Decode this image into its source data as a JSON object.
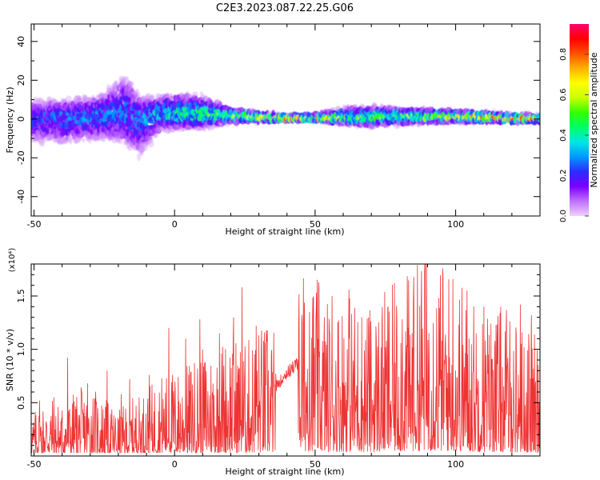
{
  "figure": {
    "title": "C2E3.2023.087.22.25.G06"
  },
  "chart_data": [
    {
      "type": "heatmap",
      "title": "C2E3.2023.087.22.25.G06",
      "xlabel": "Height of straight line (km)",
      "ylabel": "Frequency (Hz)",
      "xlim": [
        -51,
        130
      ],
      "ylim": [
        -50,
        49
      ],
      "xticks": [
        -50,
        0,
        50,
        100
      ],
      "yticks": [
        -40,
        -20,
        0,
        20,
        40
      ],
      "colorbar": {
        "label": "Normalized spectral amplitude",
        "range": [
          0,
          0.95
        ],
        "ticks": [
          0.0,
          0.2,
          0.4,
          0.6,
          0.8
        ],
        "tick_labels": [
          "0.0",
          "0.2",
          "0.4",
          "0.6",
          "0.8"
        ],
        "colormap": [
          "#f0d0ff",
          "#c070ff",
          "#7a00ff",
          "#2a2bff",
          "#0099ff",
          "#00e6e6",
          "#00ff66",
          "#33ff00",
          "#c8ff00",
          "#ffff00",
          "#ffb000",
          "#ff5000",
          "#ff0000",
          "#ff0070"
        ]
      },
      "band_envelope": {
        "height_km": [
          -51,
          -40,
          -30,
          -25,
          -18,
          -12,
          -5,
          0,
          10,
          20,
          30,
          40,
          50,
          60,
          70,
          80,
          90,
          100,
          110,
          120,
          130
        ],
        "center_hz": [
          0,
          1,
          1,
          2,
          3,
          1,
          3,
          2,
          2,
          2,
          1,
          0,
          0,
          0,
          1,
          2,
          1,
          1,
          1,
          0,
          0
        ],
        "lower_hz": [
          -15,
          -16,
          -14,
          -14,
          -16,
          -24,
          -8,
          -7,
          -6,
          -3,
          -2,
          -1,
          -1,
          -3,
          -5,
          -4,
          -3,
          -2,
          -2,
          -2,
          -2
        ],
        "upper_hz": [
          12,
          12,
          14,
          16,
          28,
          14,
          14,
          16,
          14,
          6,
          4,
          3,
          3,
          7,
          8,
          6,
          6,
          5,
          4,
          3,
          3
        ],
        "peak_amplitude": [
          0.25,
          0.3,
          0.3,
          0.3,
          0.3,
          0.3,
          0.4,
          0.45,
          0.5,
          0.6,
          0.8,
          0.9,
          0.85,
          0.6,
          0.55,
          0.55,
          0.6,
          0.75,
          0.9,
          0.95,
          0.85
        ]
      }
    },
    {
      "type": "line",
      "xlabel": "Height of straight line (km)",
      "ylabel": "SNR (10 * v/v)",
      "y_multiplier": "(x10⁴)",
      "xlim": [
        -51,
        130
      ],
      "ylim": [
        0,
        18000
      ],
      "xticks": [
        -50,
        0,
        50,
        100
      ],
      "yticks": [
        5000,
        10000,
        15000
      ],
      "ytick_labels": [
        "0.5",
        "1.0",
        "1.5"
      ],
      "color": "#ee3333",
      "series": [
        {
          "x": [
            -50,
            -45,
            -40,
            -35,
            -30,
            -25,
            -20,
            -15,
            -10,
            -5,
            0,
            5,
            10,
            15,
            20,
            25,
            30,
            35,
            40,
            45,
            50,
            55,
            60,
            65,
            70,
            75,
            80,
            85,
            90,
            95,
            100,
            105,
            110,
            115,
            120,
            125,
            130
          ],
          "y": [
            2200,
            3000,
            2500,
            3200,
            3500,
            2800,
            2200,
            2800,
            3200,
            4000,
            4200,
            4500,
            5200,
            5500,
            6200,
            5500,
            6500,
            6200,
            7800,
            9000,
            8800,
            7500,
            8000,
            7800,
            7200,
            8000,
            8500,
            9000,
            10500,
            9500,
            9000,
            8000,
            7200,
            7500,
            7000,
            6200,
            5800
          ],
          "peak_x": [
            -48,
            -43,
            -38,
            -31,
            -24,
            -19,
            -16,
            -9,
            -2,
            4,
            9,
            16,
            21,
            24,
            29,
            33,
            38,
            42,
            48,
            56,
            62,
            69,
            76,
            81,
            85,
            89,
            94,
            99,
            104,
            110,
            114,
            118,
            123,
            127
          ],
          "peak_y": [
            5200,
            5500,
            9200,
            6800,
            8000,
            5800,
            7200,
            7600,
            12000,
            11000,
            12800,
            11500,
            13000,
            15800,
            12200,
            11800,
            13200,
            10500,
            13500,
            15000,
            15600,
            13000,
            14000,
            12800,
            14500,
            18100,
            14800,
            16600,
            15500,
            14000,
            10800,
            12000,
            14200,
            13200
          ]
        }
      ]
    }
  ]
}
